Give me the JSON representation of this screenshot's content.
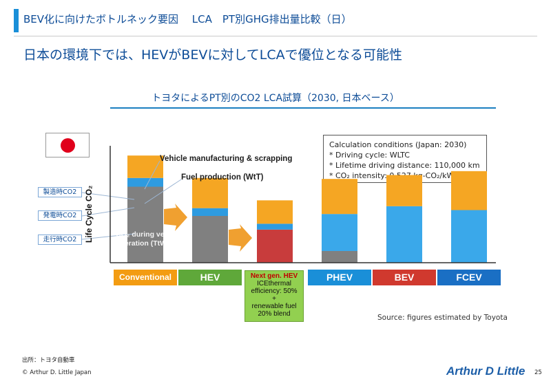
{
  "header": {
    "title": "BEV化に向けたボトルネック要因　 LCA　PT別GHG排出量比較（日）"
  },
  "headline": "日本の環境下では、HEVがBEVに対してLCAで優位となる可能性",
  "subtitle": "トヨタによるPT別のCO2 LCA試算（2030, 日本ベース）",
  "conditions": {
    "title": "Calculation conditions (Japan: 2030)",
    "lines": [
      "* Driving cycle: WLTC",
      "* Lifetime driving distance: 110,000 km",
      "* CO₂ intensity: 0.527 kg-CO₂/kWh"
    ]
  },
  "legend_boxes": [
    "製造時CO2",
    "発電時CO2",
    "走行時CO2"
  ],
  "annotations": {
    "manufacturing": "Vehicle manufacturing & scrapping",
    "fuel": "Fuel production (WtT)",
    "operation": [
      "CO₂ during vehicle",
      "operation (TtW)"
    ]
  },
  "next_gen_box": {
    "title": "Next gen. HEV",
    "lines": [
      "ICEthermal",
      "efficiency: 50%",
      "+",
      "renewable fuel",
      "20% blend"
    ]
  },
  "source": "Source: figures estimated by Toyota",
  "footer": {
    "source": "出所：トヨタ自動車",
    "copyright": "© Arthur D. Little Japan",
    "logo": "Arthur D Little",
    "page": "25"
  },
  "colors": {
    "manufacturing": "#f5a623",
    "fuel": "#2e9be0",
    "operation_ice": "#808080",
    "operation_nextgen": "#c83c3c",
    "electricity": "#3aa8ea",
    "arrow": "#f0a030"
  },
  "chart_data": {
    "type": "bar",
    "stacked": true,
    "ylabel": "Life Cycle CO₂",
    "categories": [
      "Conventional",
      "HEV",
      "Next gen. HEV",
      "PHEV",
      "BEV",
      "FCEV"
    ],
    "category_colors": [
      "#f39c12",
      "#5fa83a",
      "#92d050",
      "#1a8fd8",
      "#d0392e",
      "#1a6fc4"
    ],
    "series": [
      {
        "name": "走行時CO2",
        "values": [
          7.8,
          4.8,
          3.4,
          1.2,
          0,
          0
        ]
      },
      {
        "name": "発電時CO2",
        "values": [
          0.9,
          0.8,
          0.6,
          3.8,
          5.8,
          5.4
        ]
      },
      {
        "name": "製造時CO2",
        "values": [
          2.3,
          3.1,
          2.4,
          3.6,
          3.2,
          4.0
        ]
      }
    ],
    "ylim": [
      0,
      12
    ],
    "grid": false
  }
}
